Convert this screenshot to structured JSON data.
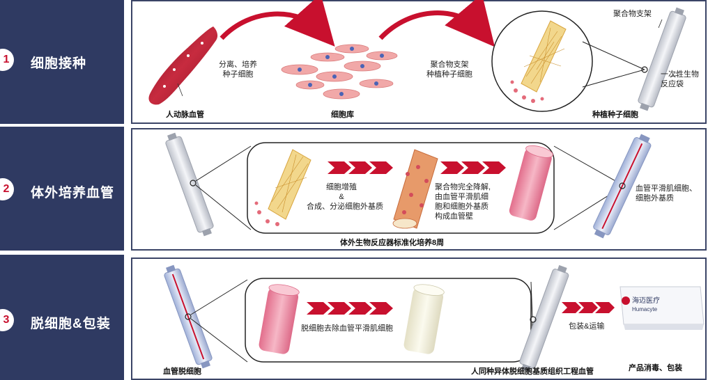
{
  "rows": [
    {
      "num": "1",
      "title": "细胞接种"
    },
    {
      "num": "2",
      "title": "体外培养血管"
    },
    {
      "num": "3",
      "title": "脱细胞&包装"
    }
  ],
  "step1": {
    "artery_label": "人动脉血管",
    "separate_label_1": "分离、培养",
    "separate_label_2": "种子细胞",
    "cell_bank_label": "细胞库",
    "scaffold_seed_1": "聚合物支架",
    "scaffold_seed_2": "种植种子细胞",
    "scaffold_top_label": "聚合物支架",
    "bioreactor_1": "一次性生物",
    "bioreactor_2": "反应袋",
    "seeded_label": "种植种子细胞"
  },
  "step2": {
    "prolif_1": "细胞增殖",
    "prolif_2": "&",
    "prolif_3": "合成、分泌细胞外基质",
    "degrade_1": "聚合物完全降解,",
    "degrade_2": "由血管平滑肌细",
    "degrade_3": "胞和细胞外基质",
    "degrade_4": "构成血管壁",
    "result_1": "血管平滑肌细胞、",
    "result_2": "细胞外基质",
    "caption": "体外生物反应器标准化培养8周"
  },
  "step3": {
    "decell_desc": "脱细胞去除血管平滑肌细胞",
    "decell_label": "血管脱细胞",
    "product_label": "人同种异体脱细胞基质组织工程血管",
    "pack_ship": "包装&运输",
    "sterilize_pack": "产品消毒、包装",
    "brand_cn": "海迈医疗",
    "brand_en": "Humacyte"
  },
  "colors": {
    "band": "#2f3a62",
    "arrow_red": "#c8102e",
    "vessel_pink": "#ee8fa5",
    "artery_red": "#a3142a",
    "scaffold_gold": "#e8b84a"
  }
}
